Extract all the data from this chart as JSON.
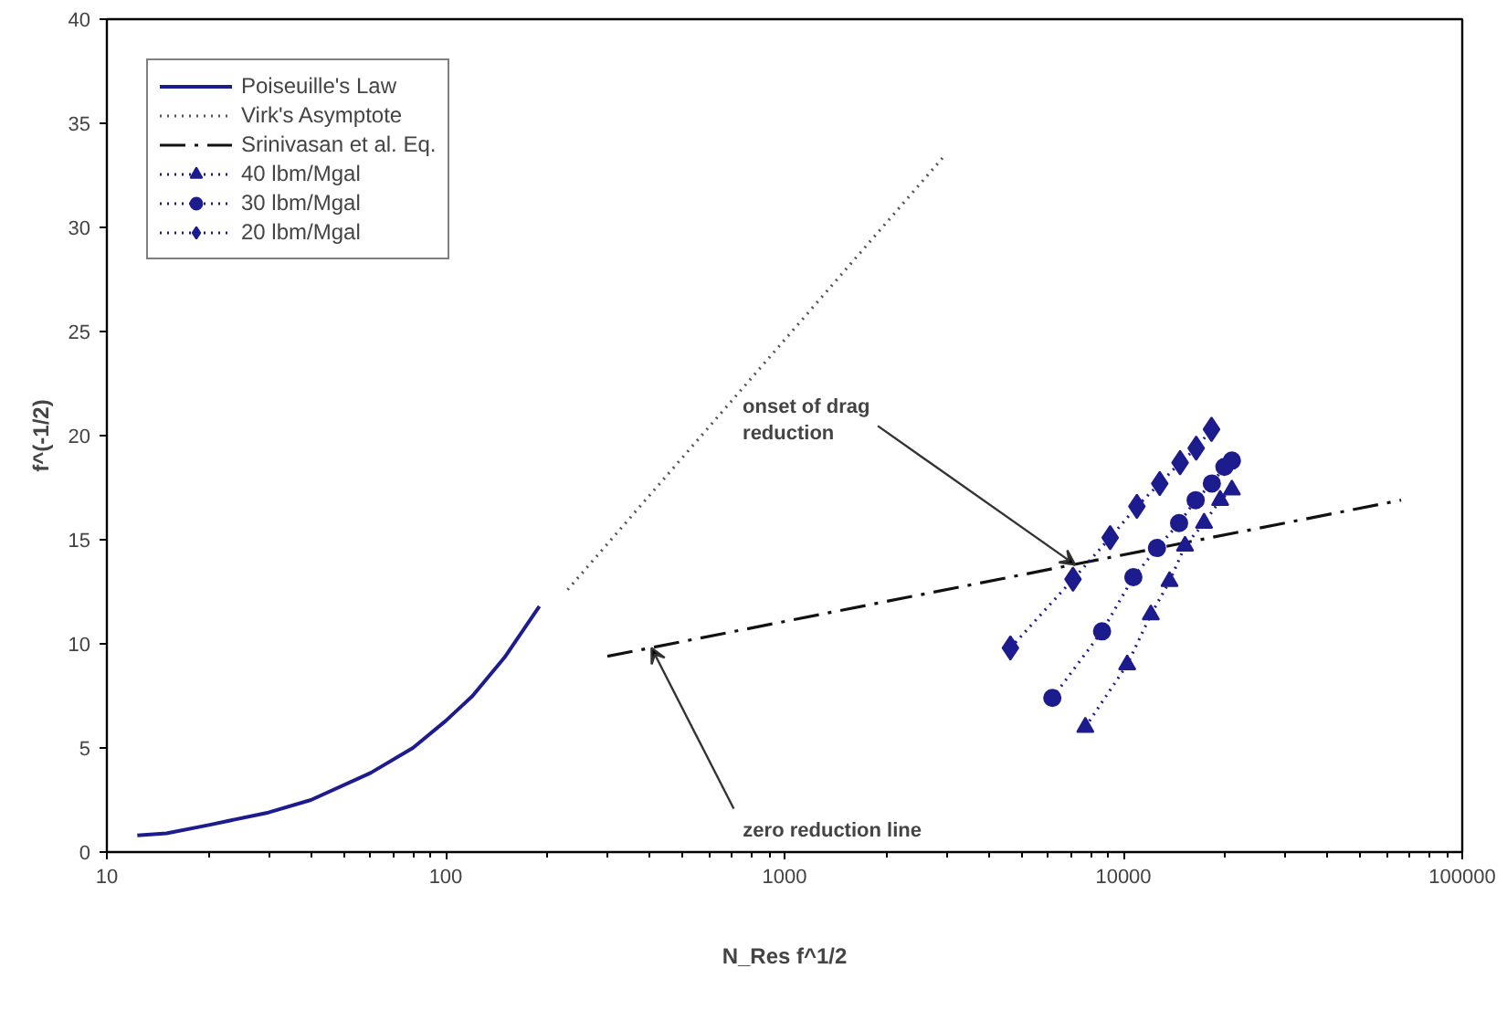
{
  "chart_data": {
    "type": "line",
    "xlabel": "N_Res f^1/2",
    "ylabel": "f^(-1/2)",
    "log": "x",
    "xlim": [
      10,
      100000
    ],
    "xticks": [
      10,
      100,
      1000,
      10000,
      100000
    ],
    "ylim": [
      0,
      40
    ],
    "yticks": [
      0,
      5,
      10,
      15,
      20,
      25,
      30,
      35,
      40
    ],
    "grid": false,
    "legend": "top left",
    "series": [
      {
        "name": "Poiseuille's Law",
        "color": "#1c1c8f",
        "line_style": "solid",
        "marker": "none",
        "x": [
          12.3,
          15,
          20,
          30,
          40,
          60,
          80,
          100,
          120,
          150,
          189
        ],
        "values": [
          0.8,
          0.9,
          1.3,
          1.9,
          2.5,
          3.8,
          5.0,
          6.3,
          7.5,
          9.4,
          11.8
        ]
      },
      {
        "name": "Virk's Asymptote",
        "color": "#555555",
        "line_style": "dotted",
        "marker": "none",
        "x": [
          229,
          2950
        ],
        "values": [
          12.6,
          33.4
        ]
      },
      {
        "name": "Srinivasan et al. Eq.",
        "color": "#111111",
        "line_style": "dashdot",
        "marker": "none",
        "x": [
          300,
          66000
        ],
        "values": [
          9.4,
          16.9
        ]
      },
      {
        "name": "40 lbm/Mgal",
        "color": "#1c1c8f",
        "line_style": "dotted",
        "marker": "triangle",
        "x": [
          7720,
          10260,
          12050,
          13680,
          15200,
          17300,
          19300,
          20900
        ],
        "values": [
          6.0,
          9.0,
          11.4,
          13.0,
          14.7,
          15.8,
          16.9,
          17.4
        ]
      },
      {
        "name": "30 lbm/Mgal",
        "color": "#1c1c8f",
        "line_style": "dotted",
        "marker": "circle",
        "x": [
          6170,
          8650,
          10700,
          12560,
          14600,
          16340,
          18240,
          19870,
          20900
        ],
        "values": [
          7.4,
          10.6,
          13.2,
          14.6,
          15.8,
          16.9,
          17.7,
          18.5,
          18.8
        ]
      },
      {
        "name": "20 lbm/Mgal",
        "color": "#1c1c8f",
        "line_style": "dotted",
        "marker": "diamond",
        "x": [
          4640,
          7100,
          9140,
          10960,
          12800,
          14700,
          16400,
          18200
        ],
        "values": [
          9.8,
          13.1,
          15.1,
          16.6,
          17.7,
          18.7,
          19.4,
          20.3
        ]
      }
    ],
    "annotations": [
      {
        "text": "onset of drag\nreduction",
        "x": 7200,
        "y": 13.8
      },
      {
        "text": "zero reduction line",
        "x": 405,
        "y": 9.8
      }
    ]
  }
}
